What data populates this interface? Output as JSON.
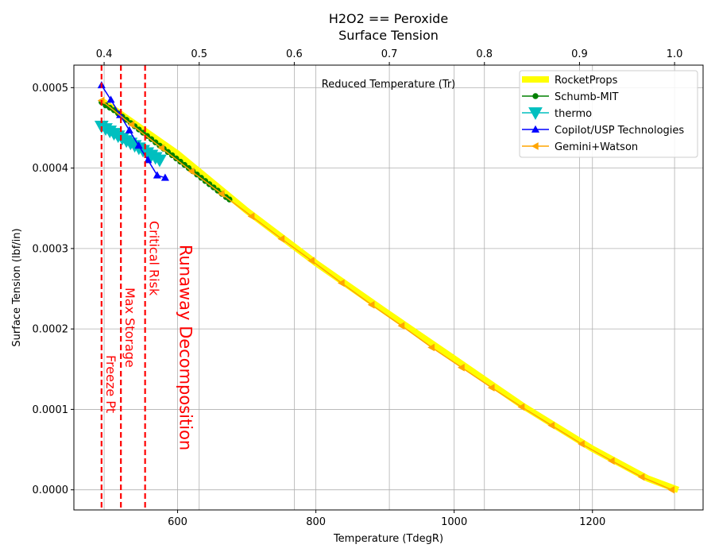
{
  "chart_data": {
    "type": "line",
    "title": "H2O2 == Peroxide",
    "subtitle": "Surface Tension",
    "xlabel": "Temperature (TdegR)",
    "ylabel": "Surface Tension (lbf/in)",
    "x2label": "Reduced Temperature (Tr)",
    "xlim": [
      450,
      1360
    ],
    "ylim": [
      -2.5e-05,
      0.000528
    ],
    "x2lim": [
      0.3682,
      1.03
    ],
    "xticks": [
      600,
      800,
      1000,
      1200
    ],
    "xtick_labels": [
      "600",
      "800",
      "1000",
      "1200"
    ],
    "x2ticks": [
      0.4,
      0.5,
      0.6,
      0.7,
      0.8,
      0.9,
      1.0
    ],
    "x2tick_labels": [
      "0.4",
      "0.5",
      "0.6",
      "0.7",
      "0.8",
      "0.9",
      "1.0"
    ],
    "yticks": [
      0,
      0.0001,
      0.0002,
      0.0003,
      0.0004,
      0.0005
    ],
    "ytick_labels": [
      "0.0000",
      "0.0001",
      "0.0002",
      "0.0003",
      "0.0004",
      "0.0005"
    ],
    "grid": true,
    "legend": "top-right",
    "series": [
      {
        "name": "RocketProps",
        "color": "#ffff00",
        "marker": "none",
        "x": [
          490.0,
          1323.9
        ],
        "points": [
          [
            490.0,
            0.000484
          ],
          [
            600,
            0.000418
          ],
          [
            700,
            0.000347
          ],
          [
            800,
            0.000282
          ],
          [
            900,
            0.000222
          ],
          [
            1000,
            0.000163
          ],
          [
            1100,
            0.000104
          ],
          [
            1200,
            5.1e-05
          ],
          [
            1280,
            1.4e-05
          ],
          [
            1323.9,
            0.0
          ]
        ]
      },
      {
        "name": "Schumb-MIT",
        "color": "#008000",
        "marker": "circle",
        "points": [
          [
            490,
            0.000482
          ],
          [
            496,
            0.000478
          ],
          [
            502,
            0.000475
          ],
          [
            508,
            0.000472
          ],
          [
            514,
            0.000468
          ],
          [
            520,
            0.000464
          ],
          [
            526,
            0.00046
          ],
          [
            532,
            0.000456
          ],
          [
            538,
            0.000452
          ],
          [
            544,
            0.000448
          ],
          [
            550,
            0.000444
          ],
          [
            556,
            0.00044
          ],
          [
            562,
            0.000436
          ],
          [
            568,
            0.000432
          ],
          [
            574,
            0.000428
          ],
          [
            580,
            0.000424
          ],
          [
            586,
            0.00042
          ],
          [
            592,
            0.000416
          ],
          [
            598,
            0.000412
          ],
          [
            604,
            0.000408
          ],
          [
            610,
            0.000404
          ],
          [
            616,
            0.0004
          ],
          [
            622,
            0.000396
          ],
          [
            628,
            0.000392
          ],
          [
            634,
            0.000388
          ],
          [
            640,
            0.000384
          ],
          [
            646,
            0.00038
          ],
          [
            652,
            0.000376
          ],
          [
            658,
            0.000372
          ],
          [
            664,
            0.000368
          ],
          [
            670,
            0.000364
          ],
          [
            675,
            0.000361
          ]
        ]
      },
      {
        "name": "thermo",
        "color": "#00bfbf",
        "marker": "triangle-down",
        "points": [
          [
            490,
            0.000452
          ],
          [
            496,
            0.000449
          ],
          [
            502,
            0.000446
          ],
          [
            508,
            0.000443
          ],
          [
            514,
            0.00044
          ],
          [
            520,
            0.000437
          ],
          [
            526,
            0.000434
          ],
          [
            532,
            0.000431
          ],
          [
            538,
            0.000428
          ],
          [
            544,
            0.000425
          ],
          [
            550,
            0.000422
          ],
          [
            556,
            0.000419
          ],
          [
            562,
            0.000416
          ],
          [
            568,
            0.000413
          ],
          [
            574,
            0.00041
          ]
        ]
      },
      {
        "name": "Copilot/USP Technologies",
        "color": "#0000ff",
        "marker": "triangle-up",
        "points": [
          [
            490,
            0.000503
          ],
          [
            503.4,
            0.000485
          ],
          [
            516.8,
            0.000466
          ],
          [
            530.2,
            0.000447
          ],
          [
            543.7,
            0.000428
          ],
          [
            557.1,
            0.00041
          ],
          [
            570.5,
            0.000391
          ],
          [
            582.0,
            0.000388
          ]
        ]
      },
      {
        "name": "Gemini+Watson",
        "color": "#ffa500",
        "marker": "triangle-left",
        "points": [
          [
            490.0,
            0.000484
          ],
          [
            533.4,
            0.000454
          ],
          [
            576.8,
            0.000425
          ],
          [
            620.2,
            0.000396
          ],
          [
            663.6,
            0.000368
          ],
          [
            707.0,
            0.00034
          ],
          [
            750.4,
            0.000312
          ],
          [
            793.8,
            0.000285
          ],
          [
            837.2,
            0.000257
          ],
          [
            880.6,
            0.00023
          ],
          [
            924.0,
            0.000204
          ],
          [
            967.4,
            0.000177
          ],
          [
            1010.8,
            0.000152
          ],
          [
            1054.2,
            0.000127
          ],
          [
            1097.6,
            0.000103
          ],
          [
            1141.0,
            8e-05
          ],
          [
            1184.4,
            5.7e-05
          ],
          [
            1227.8,
            3.6e-05
          ],
          [
            1271.2,
            1.6e-05
          ],
          [
            1314.6,
            0.0
          ]
        ]
      }
    ],
    "vlines": [
      {
        "x": 490.0,
        "label": "Freeze Pt",
        "color": "#ff0000"
      },
      {
        "x": 518.0,
        "label": "Max Storage",
        "color": "#ff0000"
      },
      {
        "x": 553.0,
        "label": "Critical Risk",
        "color": "#ff0000"
      }
    ],
    "annotations": [
      {
        "text": "Runaway Decomposition",
        "x": 600,
        "y": 0.000305,
        "color": "#ff0000"
      }
    ]
  }
}
